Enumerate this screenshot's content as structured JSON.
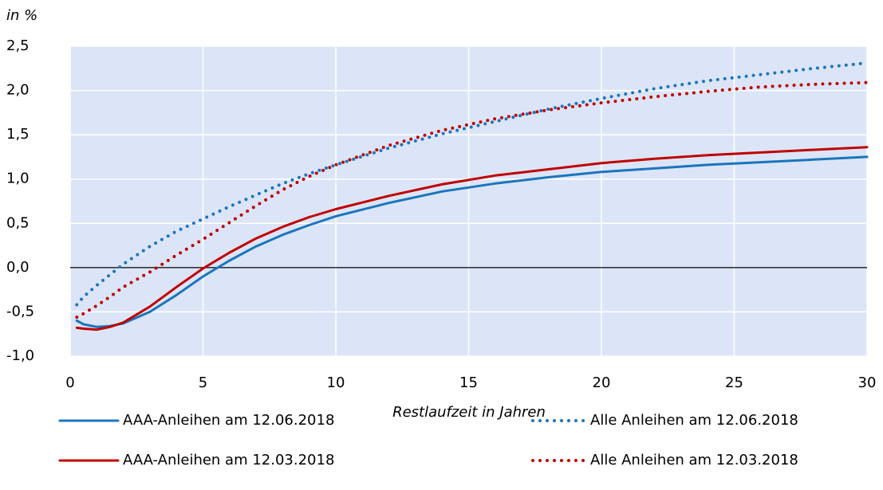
{
  "chart_data": {
    "type": "line",
    "y_axis_label": "in %",
    "x_axis_label": "Restlaufzeit in Jahren",
    "x": [
      0.25,
      0.5,
      1,
      1.5,
      2,
      3,
      4,
      5,
      6,
      7,
      8,
      9,
      10,
      12,
      14,
      16,
      18,
      20,
      22,
      24,
      26,
      28,
      30
    ],
    "series": [
      {
        "name": "AAA-Anleihen am 12.06.2018",
        "color": "#1b75bc",
        "style": "solid",
        "values": [
          -0.6,
          -0.64,
          -0.67,
          -0.66,
          -0.63,
          -0.5,
          -0.31,
          -0.1,
          0.08,
          0.24,
          0.37,
          0.48,
          0.58,
          0.73,
          0.86,
          0.95,
          1.02,
          1.08,
          1.12,
          1.16,
          1.19,
          1.22,
          1.25
        ]
      },
      {
        "name": "AAA-Anleihen am 12.03.2018",
        "color": "#c00000",
        "style": "solid",
        "values": [
          -0.68,
          -0.69,
          -0.7,
          -0.67,
          -0.62,
          -0.44,
          -0.22,
          -0.01,
          0.17,
          0.33,
          0.46,
          0.57,
          0.66,
          0.81,
          0.94,
          1.04,
          1.11,
          1.18,
          1.23,
          1.27,
          1.3,
          1.33,
          1.36
        ]
      },
      {
        "name": "Alle Anleihen am 12.06.2018",
        "color": "#1b75bc",
        "style": "dotted",
        "values": [
          -0.42,
          -0.33,
          -0.2,
          -0.08,
          0.04,
          0.24,
          0.41,
          0.55,
          0.69,
          0.82,
          0.95,
          1.06,
          1.16,
          1.35,
          1.51,
          1.65,
          1.79,
          1.91,
          2.02,
          2.11,
          2.18,
          2.25,
          2.31
        ]
      },
      {
        "name": "Alle Anleihen am 12.03.2018",
        "color": "#c00000",
        "style": "dotted",
        "values": [
          -0.56,
          -0.52,
          -0.43,
          -0.33,
          -0.22,
          -0.05,
          0.14,
          0.32,
          0.51,
          0.7,
          0.88,
          1.03,
          1.16,
          1.38,
          1.55,
          1.68,
          1.78,
          1.86,
          1.93,
          1.99,
          2.04,
          2.07,
          2.09
        ]
      }
    ],
    "xlim": [
      0,
      30
    ],
    "xticks": [
      0,
      5,
      10,
      15,
      20,
      25,
      30
    ],
    "ylim": [
      -1.0,
      2.5
    ],
    "yticks": [
      {
        "value": -1.0,
        "label": "-1,0"
      },
      {
        "value": -0.5,
        "label": "-0,5"
      },
      {
        "value": 0,
        "label": "0,0"
      },
      {
        "value": 0.5,
        "label": "0,5"
      },
      {
        "value": 1.0,
        "label": "1,0"
      },
      {
        "value": 1.5,
        "label": "1,5"
      },
      {
        "value": 2.0,
        "label": "2,0"
      },
      {
        "value": 2.5,
        "label": "2,5"
      }
    ],
    "grid": true,
    "plot_background": "#dbe5f7",
    "legend": "bottom"
  }
}
